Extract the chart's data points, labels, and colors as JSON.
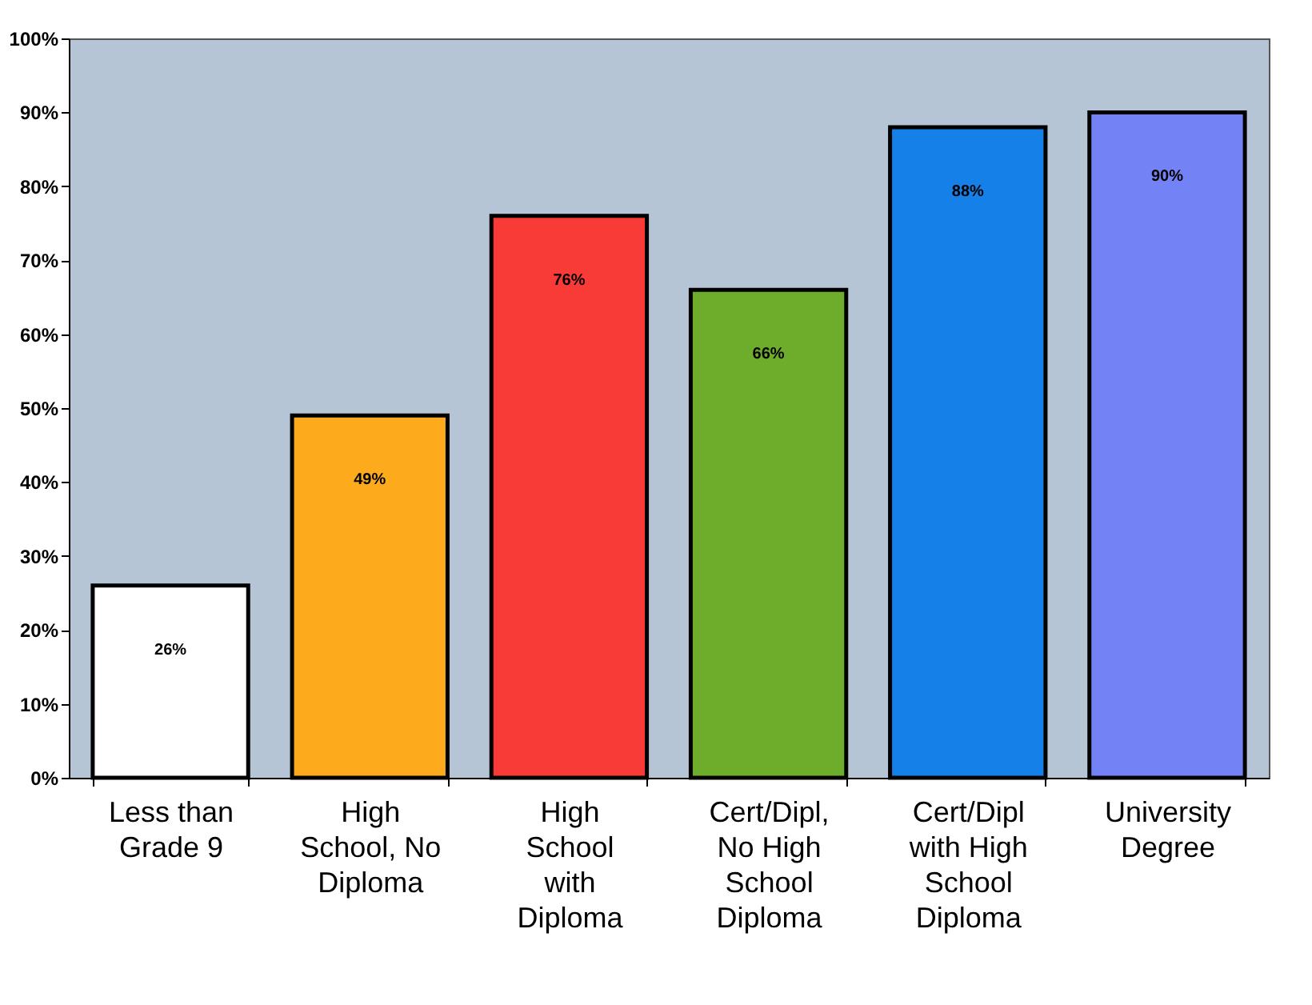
{
  "chart_data": {
    "type": "bar",
    "categories": [
      "Less than\nGrade 9",
      "High\nSchool, No\nDiploma",
      "High\nSchool\nwith\nDiploma",
      "Cert/Dipl,\nNo High\nSchool\nDiploma",
      "Cert/Dipl\nwith High\nSchool\nDiploma",
      "University\nDegree"
    ],
    "values": [
      26,
      49,
      76,
      66,
      88,
      90
    ],
    "colors": [
      "#ffffff",
      "#fdab1c",
      "#f93b37",
      "#6eac2c",
      "#1581e8",
      "#7383f5"
    ],
    "value_labels": [
      "26%",
      "49%",
      "76%",
      "66%",
      "88%",
      "90%"
    ],
    "ylim": [
      0,
      100
    ],
    "yticks": [
      {
        "value": 0,
        "label": "0%"
      },
      {
        "value": 10,
        "label": "10%"
      },
      {
        "value": 20,
        "label": "20%"
      },
      {
        "value": 30,
        "label": "30%"
      },
      {
        "value": 40,
        "label": "40%"
      },
      {
        "value": 50,
        "label": "50%"
      },
      {
        "value": 60,
        "label": "60%"
      },
      {
        "value": 70,
        "label": "70%"
      },
      {
        "value": 80,
        "label": "80%"
      },
      {
        "value": 90,
        "label": "90%"
      },
      {
        "value": 100,
        "label": "100%"
      }
    ],
    "grid": false,
    "legend": false
  }
}
